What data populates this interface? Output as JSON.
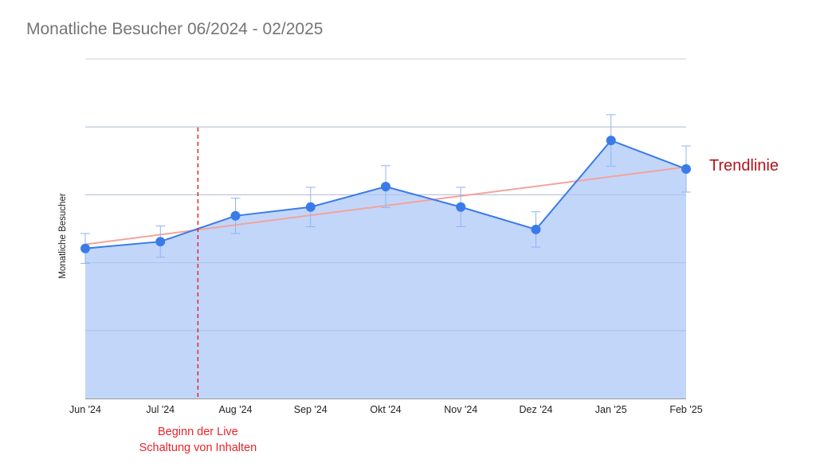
{
  "chart_data": {
    "type": "area",
    "title": "Monatliche Besucher 06/2024 - 02/2025",
    "ylabel": "Monatliche Besucher",
    "xlabel": "",
    "categories": [
      "Jun '24",
      "Jul '24",
      "Aug '24",
      "Sep '24",
      "Okt '24",
      "Nov '24",
      "Dez '24",
      "Jan '25",
      "Feb '25"
    ],
    "ylim": [
      0,
      5
    ],
    "grid": true,
    "series": [
      {
        "values": [
          2.21,
          2.31,
          2.69,
          2.82,
          3.12,
          2.82,
          2.49,
          3.8,
          3.38
        ],
        "error": [
          0.22,
          0.23,
          0.26,
          0.29,
          0.31,
          0.29,
          0.26,
          0.38,
          0.34
        ],
        "color": "#3a7bea",
        "fill": "#c2d6fa"
      }
    ],
    "trendline": {
      "label": "Trendlinie",
      "start": 2.27,
      "end": 3.41,
      "color": "#f2a49c"
    },
    "annotations": [
      {
        "category_index": 1.5,
        "line1": "Beginn der Live",
        "line2": "Schaltung von Inhalten",
        "color": "#e8232a"
      }
    ]
  }
}
